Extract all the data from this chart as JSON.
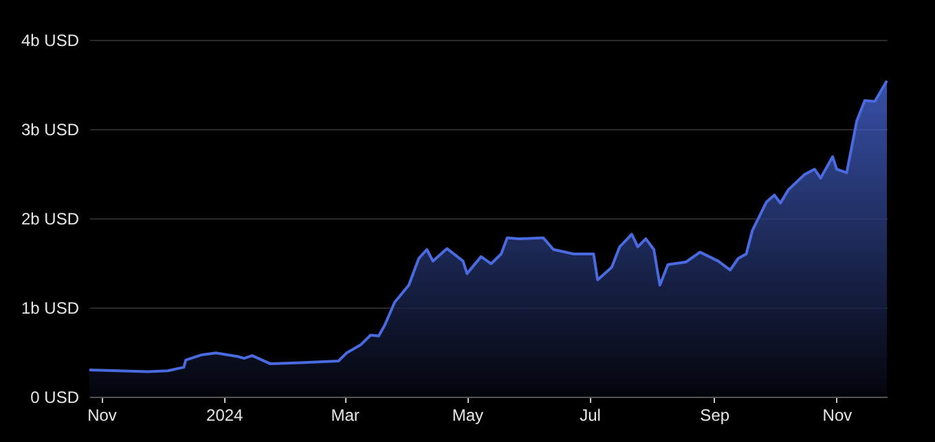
{
  "chart_data": {
    "type": "area",
    "x": [
      "2023-10-26",
      "2023-11-10",
      "2023-11-24",
      "2023-12-04",
      "2023-12-12",
      "2023-12-13",
      "2023-12-21",
      "2023-12-28",
      "2024-01-08",
      "2024-01-11",
      "2024-01-15",
      "2024-01-24",
      "2024-02-08",
      "2024-02-27",
      "2024-03-02",
      "2024-03-09",
      "2024-03-14",
      "2024-03-18",
      "2024-03-21",
      "2024-03-26",
      "2024-03-29",
      "2024-04-02",
      "2024-04-07",
      "2024-04-11",
      "2024-04-14",
      "2024-04-21",
      "2024-04-29",
      "2024-05-01",
      "2024-05-08",
      "2024-05-13",
      "2024-05-18",
      "2024-05-21",
      "2024-05-27",
      "2024-06-08",
      "2024-06-13",
      "2024-06-23",
      "2024-07-03",
      "2024-07-05",
      "2024-07-12",
      "2024-07-16",
      "2024-07-22",
      "2024-07-25",
      "2024-07-29",
      "2024-08-02",
      "2024-08-05",
      "2024-08-09",
      "2024-08-18",
      "2024-08-25",
      "2024-09-03",
      "2024-09-09",
      "2024-09-13",
      "2024-09-17",
      "2024-09-20",
      "2024-09-27",
      "2024-10-01",
      "2024-10-04",
      "2024-10-08",
      "2024-10-16",
      "2024-10-21",
      "2024-10-24",
      "2024-10-30",
      "2024-11-01",
      "2024-11-06",
      "2024-11-11",
      "2024-11-15",
      "2024-11-20",
      "2024-11-26"
    ],
    "series": [
      {
        "color": "#4a6be0",
        "values": [
          0.3,
          0.29,
          0.28,
          0.29,
          0.33,
          0.41,
          0.47,
          0.49,
          0.45,
          0.43,
          0.46,
          0.37,
          0.38,
          0.4,
          0.49,
          0.58,
          0.69,
          0.68,
          0.8,
          1.06,
          1.14,
          1.25,
          1.55,
          1.65,
          1.52,
          1.66,
          1.52,
          1.38,
          1.57,
          1.49,
          1.6,
          1.78,
          1.77,
          1.78,
          1.65,
          1.6,
          1.6,
          1.31,
          1.45,
          1.68,
          1.82,
          1.68,
          1.77,
          1.65,
          1.25,
          1.48,
          1.51,
          1.62,
          1.52,
          1.42,
          1.55,
          1.6,
          1.86,
          2.18,
          2.26,
          2.17,
          2.32,
          2.49,
          2.55,
          2.45,
          2.69,
          2.55,
          2.51,
          3.09,
          3.32,
          3.31,
          3.54
        ]
      }
    ],
    "xlim": [
      "2023-10-26",
      "2024-11-26"
    ],
    "xticks": [
      {
        "value": "2023-11-01",
        "label": "Nov"
      },
      {
        "value": "2024-01-01",
        "label": "2024"
      },
      {
        "value": "2024-03-01",
        "label": "Mar"
      },
      {
        "value": "2024-05-01",
        "label": "May"
      },
      {
        "value": "2024-07-01",
        "label": "Jul"
      },
      {
        "value": "2024-09-01",
        "label": "Sep"
      },
      {
        "value": "2024-11-01",
        "label": "Nov"
      }
    ],
    "ylim": [
      0,
      4
    ],
    "yticks": [
      {
        "value": 0,
        "label": "0 USD"
      },
      {
        "value": 1,
        "label": "1b USD"
      },
      {
        "value": 2,
        "label": "2b USD"
      },
      {
        "value": 3,
        "label": "3b USD"
      },
      {
        "value": 4,
        "label": "4b USD"
      }
    ],
    "grid": "y",
    "line_style": "solid",
    "marker": "none"
  }
}
